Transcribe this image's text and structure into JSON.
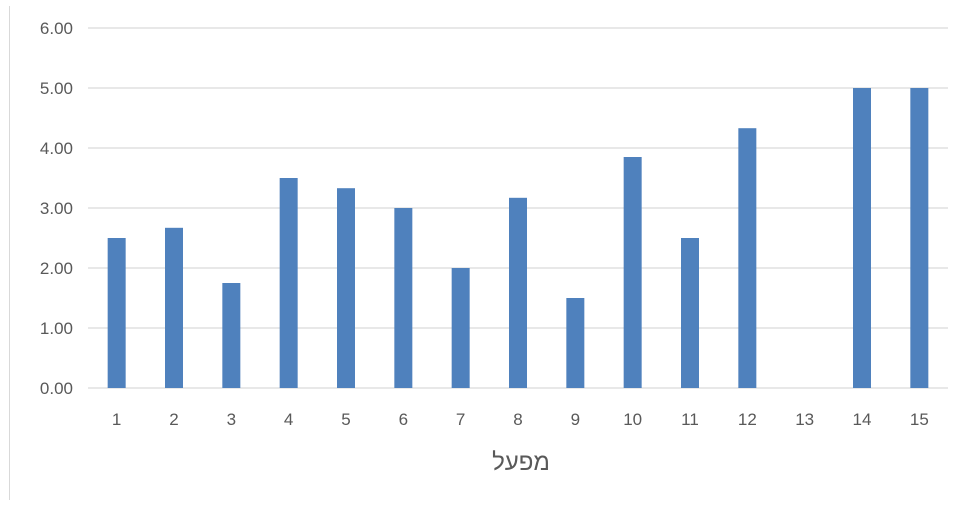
{
  "chart_data": {
    "type": "bar",
    "title": "",
    "xlabel": "מפעל",
    "ylabel": "",
    "categories": [
      "1",
      "2",
      "3",
      "4",
      "5",
      "6",
      "7",
      "8",
      "9",
      "10",
      "11",
      "12",
      "13",
      "14",
      "15"
    ],
    "values": [
      2.5,
      2.67,
      1.75,
      3.5,
      3.33,
      3.0,
      2.0,
      3.17,
      1.5,
      3.85,
      2.5,
      4.33,
      0,
      5.0,
      5.0
    ],
    "ylim": [
      0,
      6
    ],
    "yticks": [
      "0.00",
      "1.00",
      "2.00",
      "3.00",
      "4.00",
      "5.00",
      "6.00"
    ],
    "grid": true,
    "legend": "none",
    "colors": {
      "bar": "#4f81bd",
      "grid": "#d9d9d9",
      "text": "#595959"
    }
  }
}
